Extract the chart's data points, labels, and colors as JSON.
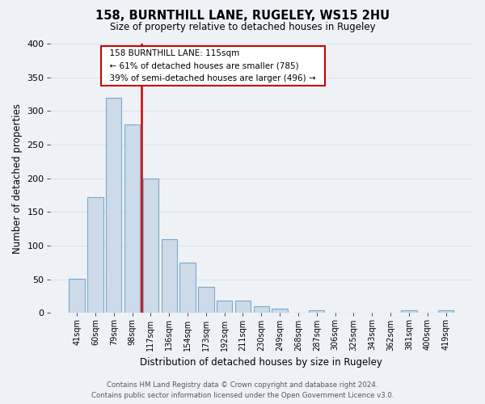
{
  "title": "158, BURNTHILL LANE, RUGELEY, WS15 2HU",
  "subtitle": "Size of property relative to detached houses in Rugeley",
  "xlabel": "Distribution of detached houses by size in Rugeley",
  "ylabel": "Number of detached properties",
  "bin_labels": [
    "41sqm",
    "60sqm",
    "79sqm",
    "98sqm",
    "117sqm",
    "136sqm",
    "154sqm",
    "173sqm",
    "192sqm",
    "211sqm",
    "230sqm",
    "249sqm",
    "268sqm",
    "287sqm",
    "306sqm",
    "325sqm",
    "343sqm",
    "362sqm",
    "381sqm",
    "400sqm",
    "419sqm"
  ],
  "bar_values": [
    51,
    172,
    320,
    280,
    200,
    110,
    75,
    39,
    18,
    18,
    10,
    6,
    0,
    4,
    0,
    0,
    0,
    0,
    4,
    0,
    4
  ],
  "bar_color": "#ccdaea",
  "bar_edge_color": "#7aaac8",
  "vline_x": 3.5,
  "vline_color": "#cc0000",
  "ylim": [
    0,
    400
  ],
  "yticks": [
    0,
    50,
    100,
    150,
    200,
    250,
    300,
    350,
    400
  ],
  "annotation_title": "158 BURNTHILL LANE: 115sqm",
  "annotation_line1": "← 61% of detached houses are smaller (785)",
  "annotation_line2": "39% of semi-detached houses are larger (496) →",
  "annotation_box_color": "white",
  "annotation_box_edge": "#cc0000",
  "footer1": "Contains HM Land Registry data © Crown copyright and database right 2024.",
  "footer2": "Contains public sector information licensed under the Open Government Licence v3.0.",
  "background_color": "#eef2f7",
  "grid_color": "#d8e4f0"
}
